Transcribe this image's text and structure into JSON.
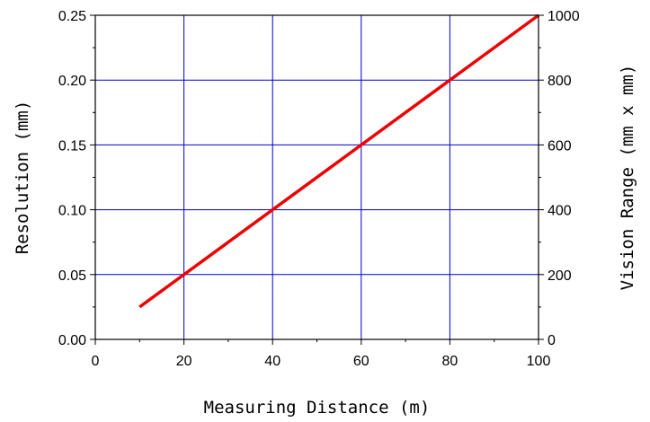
{
  "chart_data": {
    "type": "line",
    "title": "",
    "xlabel": "Measuring Distance (m)",
    "ylabel": "Resolution (mm)",
    "y2label": "Vision Range (mm x mm)",
    "xlim": [
      0,
      100
    ],
    "ylim": [
      0,
      0.25
    ],
    "y2lim": [
      0,
      1000
    ],
    "x_ticks": [
      "0",
      "20",
      "40",
      "60",
      "80",
      "100"
    ],
    "y_ticks": [
      "0.00",
      "0.05",
      "0.10",
      "0.15",
      "0.20",
      "0.25"
    ],
    "y2_ticks": [
      "0",
      "200",
      "400",
      "600",
      "800",
      "1000"
    ],
    "grid": true,
    "legend": "none",
    "series": [
      {
        "x": [
          10,
          100
        ],
        "y": [
          0.025,
          0.25
        ],
        "color": "#ee0000"
      }
    ],
    "colors": {
      "grid": "#0000cc",
      "axis": "#000000",
      "line": "#ee0000"
    }
  }
}
